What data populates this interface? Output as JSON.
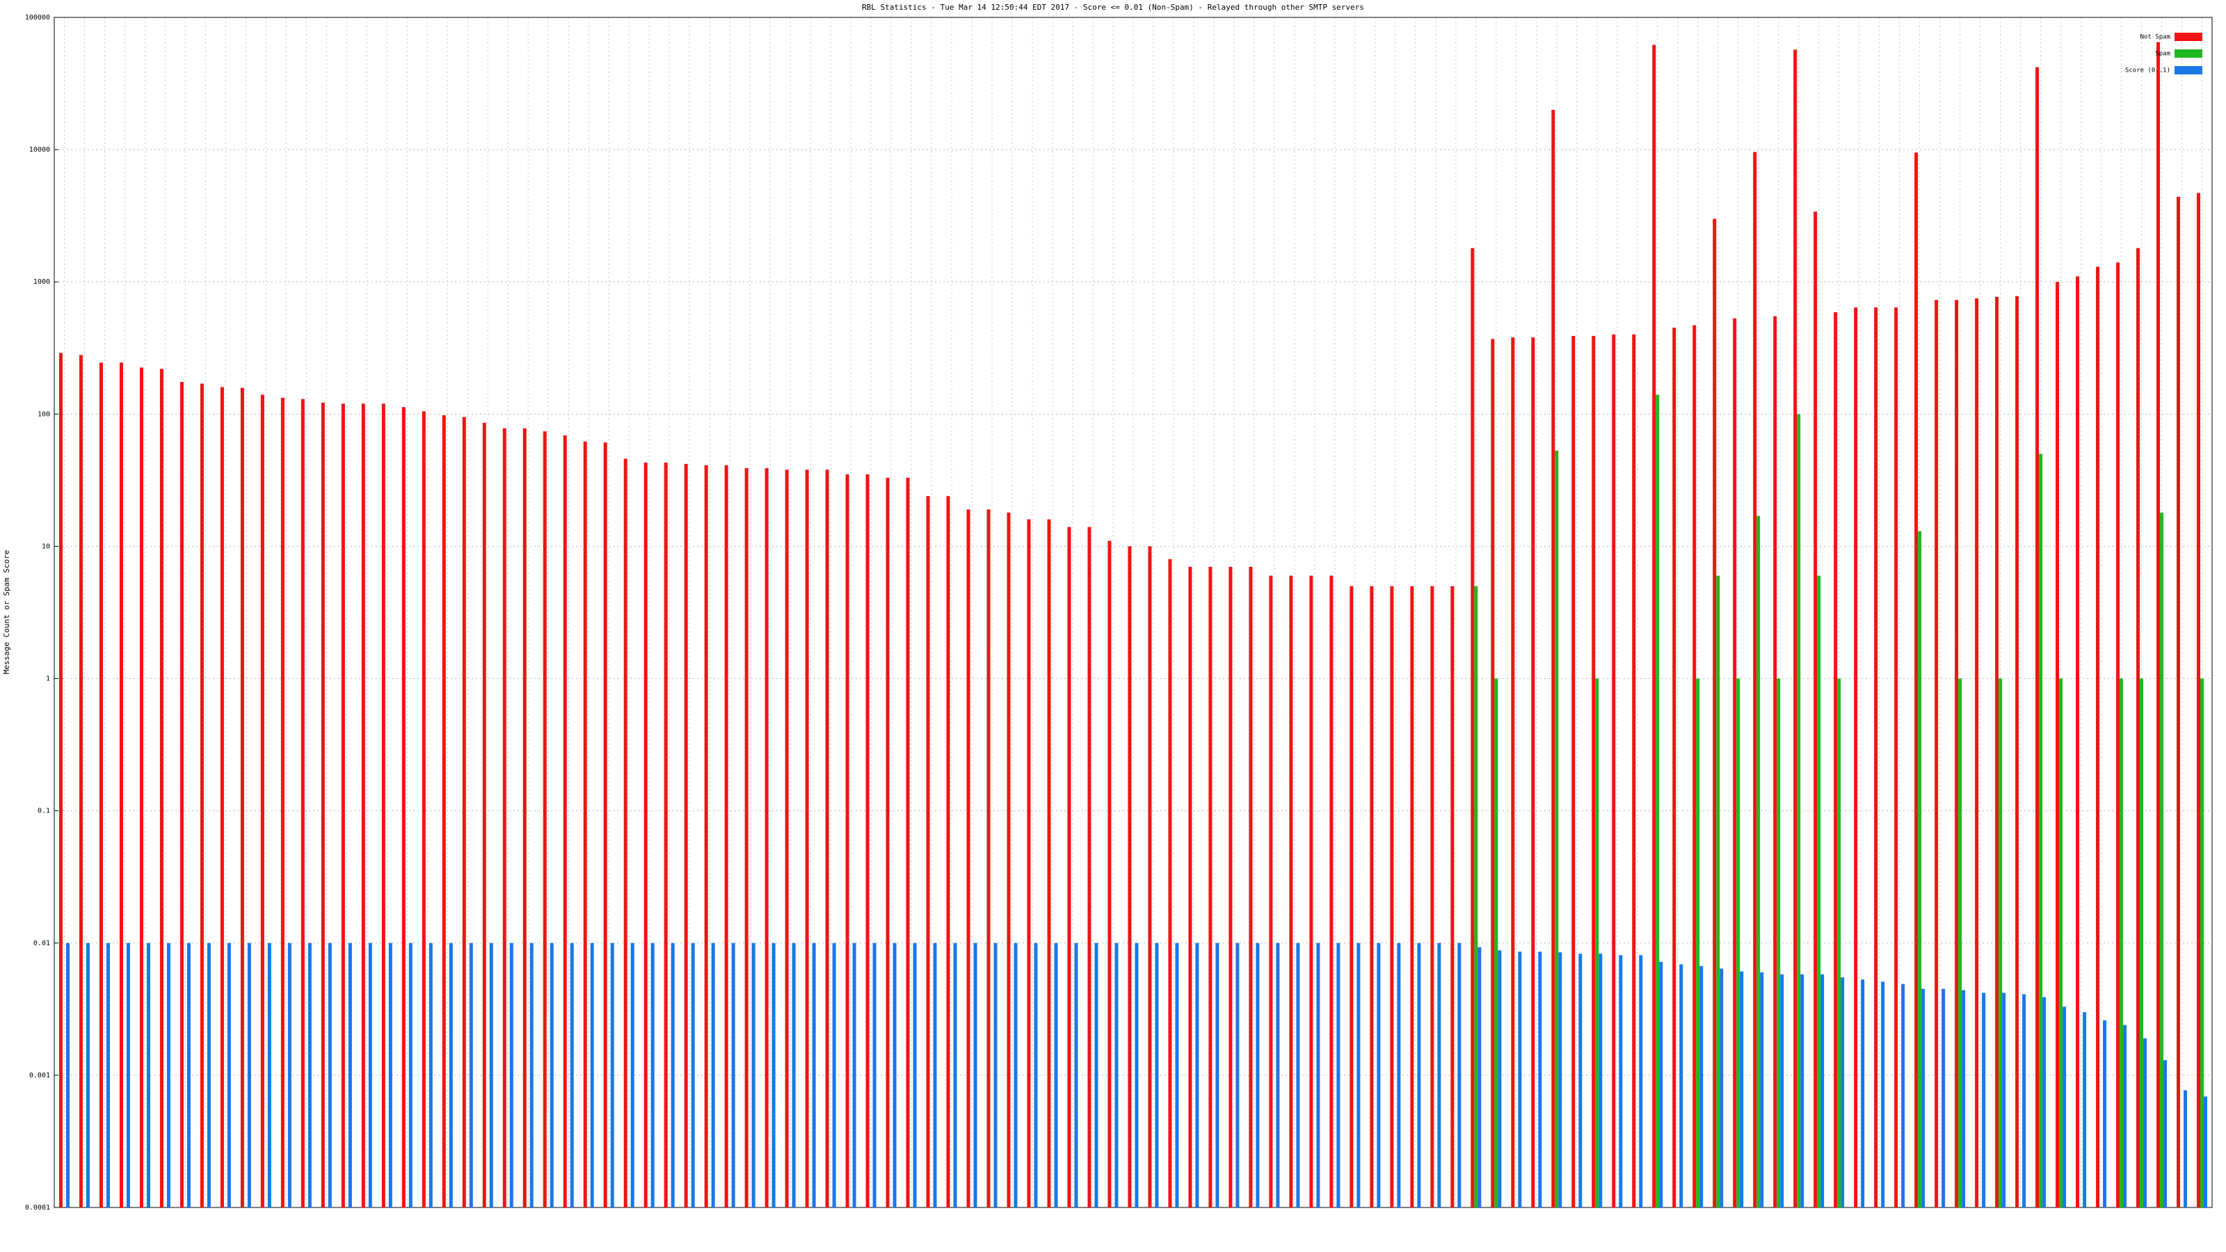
{
  "chart_data": {
    "type": "bar",
    "title": "RBL Statistics - Tue Mar 14 12:50:44 EDT 2017 - Score <= 0.01 (Non-Spam) - Relayed through other SMTP servers",
    "y_label": "Message Count or Spam Score",
    "log_scale": true,
    "grid": true,
    "legend": "upper right",
    "ylim": [
      0.0001,
      100000
    ],
    "yticks": [
      0.0001,
      0.001,
      0.01,
      0.1,
      1,
      10,
      100,
      1000,
      10000,
      100000
    ],
    "categories": [
      null,
      null,
      null,
      null,
      null,
      null,
      null,
      null,
      null,
      null,
      null,
      null,
      null,
      null,
      null,
      null,
      null,
      null,
      null,
      null,
      null,
      null,
      null,
      null,
      null,
      null,
      null,
      null,
      null,
      null,
      null,
      null,
      null,
      null,
      null,
      null,
      null,
      null,
      null,
      null,
      null,
      null,
      null,
      null,
      null,
      null,
      null,
      null,
      null,
      null,
      null,
      null,
      null,
      null,
      null,
      null,
      null,
      null,
      null,
      null,
      null,
      null,
      null,
      null,
      null,
      null,
      null,
      null,
      null,
      null,
      null,
      null,
      null,
      null,
      null,
      null,
      null,
      null,
      null,
      null,
      null,
      null,
      null,
      null,
      null,
      null,
      null,
      null,
      null,
      null,
      null,
      null,
      null,
      null,
      null,
      null,
      null,
      null,
      null,
      null,
      null,
      null,
      null,
      null,
      null,
      null,
      null
    ],
    "series": [
      {
        "name": "Not Spam",
        "color": "#f01414",
        "values": [
          290,
          280,
          245,
          245,
          225,
          220,
          175,
          170,
          160,
          158,
          140,
          133,
          130,
          122,
          120,
          120,
          120,
          113,
          105,
          98,
          95,
          86,
          78,
          78,
          74,
          69,
          62,
          61,
          46,
          43,
          43,
          42,
          41,
          41,
          39,
          39,
          38,
          38,
          38,
          35,
          35,
          33,
          33,
          24,
          24,
          19,
          19,
          18,
          16,
          16,
          14,
          14,
          11,
          10,
          10,
          8,
          7,
          7,
          7,
          7,
          6,
          6,
          6,
          6,
          5,
          5,
          5,
          5,
          5,
          5,
          1800,
          370,
          380,
          380,
          20000,
          390,
          390,
          400,
          400,
          62000,
          450,
          470,
          3000,
          530,
          9600,
          550,
          57000,
          3400,
          590,
          640,
          640,
          640,
          9500,
          730,
          730,
          750,
          770,
          780,
          42000,
          1000,
          1100,
          1300,
          1400,
          1800,
          65000,
          4400,
          4700
        ]
      },
      {
        "name": "Spam",
        "color": "#1fb81f",
        "values": [
          null,
          null,
          null,
          null,
          null,
          null,
          null,
          null,
          null,
          null,
          null,
          null,
          null,
          null,
          null,
          null,
          null,
          null,
          null,
          null,
          null,
          null,
          null,
          null,
          null,
          null,
          null,
          null,
          null,
          null,
          null,
          null,
          null,
          null,
          null,
          null,
          null,
          null,
          null,
          null,
          null,
          null,
          null,
          null,
          null,
          null,
          null,
          null,
          null,
          null,
          null,
          null,
          null,
          null,
          null,
          null,
          null,
          null,
          null,
          null,
          null,
          null,
          null,
          null,
          null,
          null,
          null,
          null,
          null,
          null,
          5,
          1,
          null,
          null,
          53,
          null,
          1,
          null,
          null,
          140,
          null,
          1,
          6,
          1,
          17,
          1,
          100,
          6,
          1,
          null,
          null,
          null,
          13,
          null,
          1,
          null,
          1,
          null,
          50,
          1,
          null,
          null,
          1,
          1,
          18,
          null,
          1
        ]
      },
      {
        "name": "Score (0..1)",
        "color": "#1a78e6",
        "values": [
          0.01,
          0.01,
          0.01,
          0.01,
          0.01,
          0.01,
          0.01,
          0.01,
          0.01,
          0.01,
          0.01,
          0.01,
          0.01,
          0.01,
          0.01,
          0.01,
          0.01,
          0.01,
          0.01,
          0.01,
          0.01,
          0.01,
          0.01,
          0.01,
          0.01,
          0.01,
          0.01,
          0.01,
          0.01,
          0.01,
          0.01,
          0.01,
          0.01,
          0.01,
          0.01,
          0.01,
          0.01,
          0.01,
          0.01,
          0.01,
          0.01,
          0.01,
          0.01,
          0.01,
          0.01,
          0.01,
          0.01,
          0.01,
          0.01,
          0.01,
          0.01,
          0.01,
          0.01,
          0.01,
          0.01,
          0.01,
          0.01,
          0.01,
          0.01,
          0.01,
          0.01,
          0.01,
          0.01,
          0.01,
          0.01,
          0.01,
          0.01,
          0.01,
          0.01,
          0.01,
          0.0093,
          0.0088,
          0.0086,
          0.0086,
          0.0085,
          0.0083,
          0.0083,
          0.0081,
          0.0081,
          0.0072,
          0.0069,
          0.0067,
          0.0064,
          0.0061,
          0.006,
          0.0058,
          0.0058,
          0.0058,
          0.0055,
          0.0053,
          0.0051,
          0.0049,
          0.0045,
          0.0045,
          0.0044,
          0.0042,
          0.0042,
          0.0041,
          0.0039,
          0.0033,
          0.003,
          0.0026,
          0.0024,
          0.0019,
          0.0013,
          0.00077,
          0.00069
        ]
      }
    ]
  }
}
